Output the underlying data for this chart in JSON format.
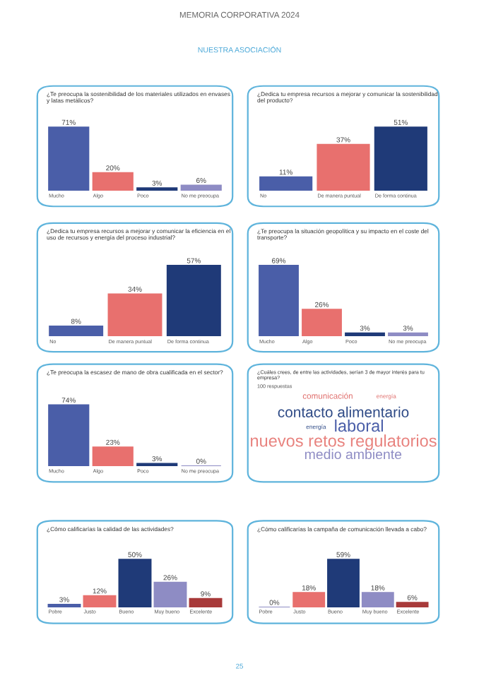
{
  "chart_data": [
    {
      "type": "other",
      "annotations": [
        "MEMORIA CORPORATIVA 2024",
        "NUESTRA ASOCIACIÓN",
        "25"
      ]
    },
    {
      "type": "bar",
      "title": "¿Te preocupa la sostenibilidad de los materiales utilizados en envases y latas metálicos?",
      "categories": [
        "Mucho",
        "Algo",
        "Poco",
        "No me preocupa"
      ],
      "values": [
        71,
        20,
        3,
        6
      ],
      "value_labels": [
        "71%",
        "20%",
        "3%",
        "6%"
      ],
      "colors": [
        "#4a5ea8",
        "#e8706e",
        "#1f3a78",
        "#8e8cc4"
      ]
    },
    {
      "type": "bar",
      "title": "¿Dedica tu empresa recursos a mejorar y comunicar la sostenibilidad del producto?",
      "categories": [
        "No",
        "De manera puntual",
        "De forma continua"
      ],
      "values": [
        11,
        37,
        51
      ],
      "value_labels": [
        "11%",
        "37%",
        "51%"
      ],
      "colors": [
        "#4a5ea8",
        "#e8706e",
        "#1f3a78"
      ]
    },
    {
      "type": "bar",
      "title": "¿Dedica tu empresa recursos a mejorar y comunicar la eficiencia en el uso de recursos y energía del proceso industrial?",
      "categories": [
        "No",
        "De manera puntual",
        "De forma continua"
      ],
      "values": [
        8,
        34,
        57
      ],
      "value_labels": [
        "8%",
        "34%",
        "57%"
      ],
      "colors": [
        "#4a5ea8",
        "#e8706e",
        "#1f3a78"
      ]
    },
    {
      "type": "bar",
      "title": "¿Te preocupa la situación geopolítica y su impacto en el coste del transporte?",
      "categories": [
        "Mucho",
        "Algo",
        "Poco",
        "No me preocupa"
      ],
      "values": [
        69,
        26,
        3,
        3
      ],
      "value_labels": [
        "69%",
        "26%",
        "3%",
        "3%"
      ],
      "colors": [
        "#4a5ea8",
        "#e8706e",
        "#1f3a78",
        "#8e8cc4"
      ]
    },
    {
      "type": "bar",
      "title": "¿Te preocupa la escasez de mano de obra cualificada en el sector?",
      "categories": [
        "Mucho",
        "Algo",
        "Poco",
        "No me preocupa"
      ],
      "values": [
        74,
        23,
        3,
        0
      ],
      "value_labels": [
        "74%",
        "23%",
        "3%",
        "0%"
      ],
      "colors": [
        "#4a5ea8",
        "#e8706e",
        "#1f3a78",
        "#8e8cc4"
      ]
    },
    {
      "type": "other",
      "title": "¿Cuáles crees, de entre las actividades, serían 3 de mayor interés para tu empresa?",
      "subtitle": "100 respuestas",
      "annotations": [
        "comunicación",
        "energía",
        "contacto alimentario",
        "energía",
        "laboral",
        "nuevos retos regulatorios",
        "medio ambiente"
      ]
    },
    {
      "type": "bar",
      "title": "¿Cómo calificarías la calidad de las actividades?",
      "categories": [
        "Pobre",
        "Justo",
        "Bueno",
        "Muy bueno",
        "Excelente"
      ],
      "values": [
        3,
        12,
        50,
        26,
        9
      ],
      "value_labels": [
        "3%",
        "12%",
        "50%",
        "26%",
        "9%"
      ],
      "colors": [
        "#4a5ea8",
        "#e8706e",
        "#1f3a78",
        "#8e8cc4",
        "#a83a3a"
      ]
    },
    {
      "type": "bar",
      "title": "¿Cómo calificarías la campaña de comunicación llevada a cabo?",
      "categories": [
        "Pobre",
        "Justo",
        "Bueno",
        "Muy bueno",
        "Excelente"
      ],
      "values": [
        0,
        18,
        59,
        18,
        6
      ],
      "value_labels": [
        "0%",
        "18%",
        "59%",
        "18%",
        "6%"
      ],
      "colors": [
        "#8e8cc4",
        "#e8706e",
        "#1f3a78",
        "#8e8cc4",
        "#a83a3a"
      ]
    }
  ]
}
